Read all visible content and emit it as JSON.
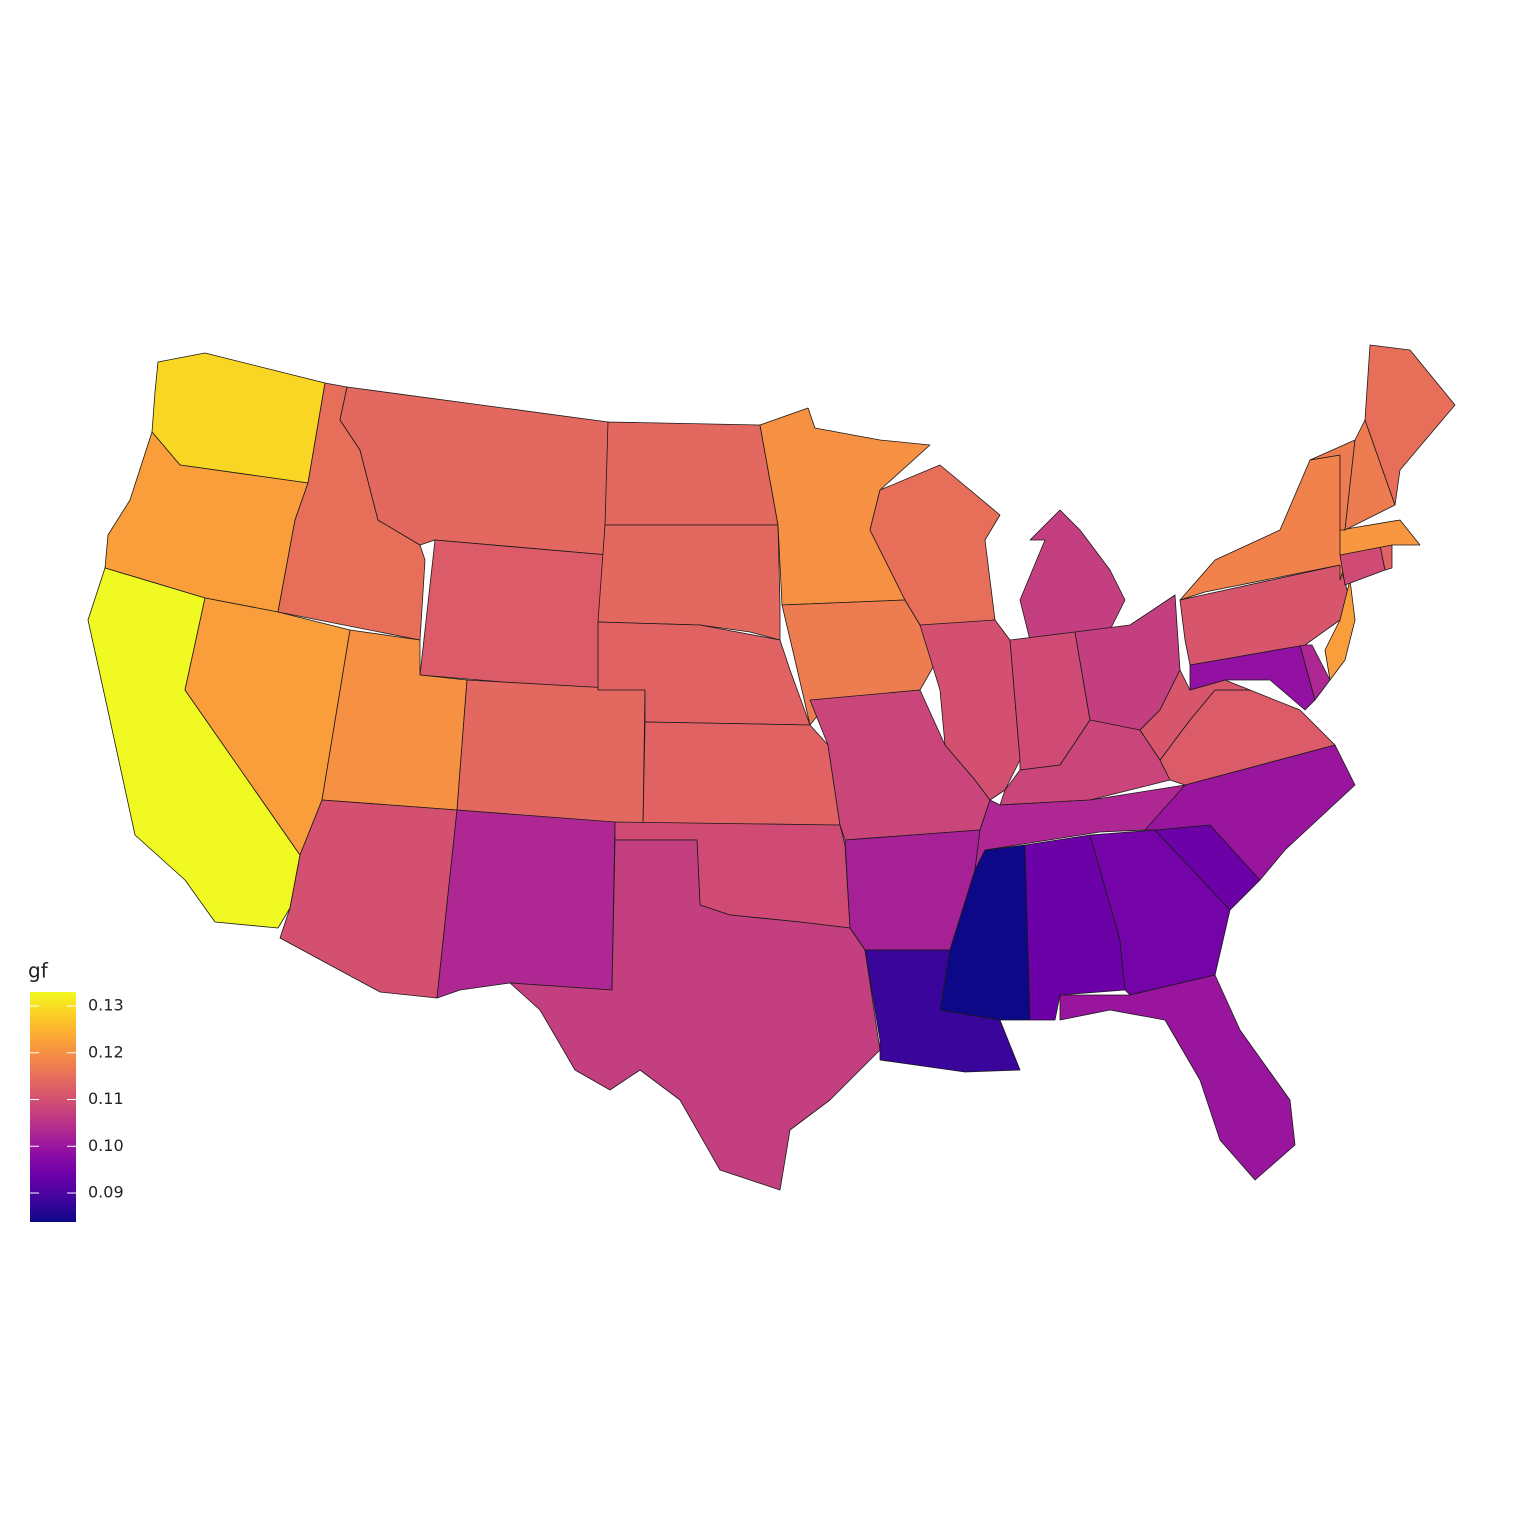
{
  "chart_data": {
    "type": "choropleth",
    "legend_title": "gf",
    "colormap": "plasma",
    "values": [
      0.129,
      0.122,
      0.133,
      0.122,
      0.115,
      0.114,
      0.112,
      0.12,
      0.114,
      0.11,
      0.103,
      0.114,
      0.114,
      0.113,
      0.113,
      0.109,
      0.107,
      0.12,
      0.117,
      0.108,
      0.102,
      0.088,
      0.115,
      0.11,
      0.107,
      0.109,
      0.107,
      0.108,
      0.103,
      0.0838,
      0.094,
      0.095,
      0.094,
      0.1,
      0.1,
      0.112,
      0.111,
      0.099,
      0.103,
      0.111,
      0.122,
      0.118,
      0.109,
      0.113,
      0.121,
      0.117,
      0.117,
      0.115
    ],
    "colorlim": [
      0.0838,
      0.133
    ],
    "colorticks": [
      0.09,
      {
        "value": 0.1,
        "label": "0.10"
      },
      0.11,
      0.12,
      0.13
    ]
  }
}
